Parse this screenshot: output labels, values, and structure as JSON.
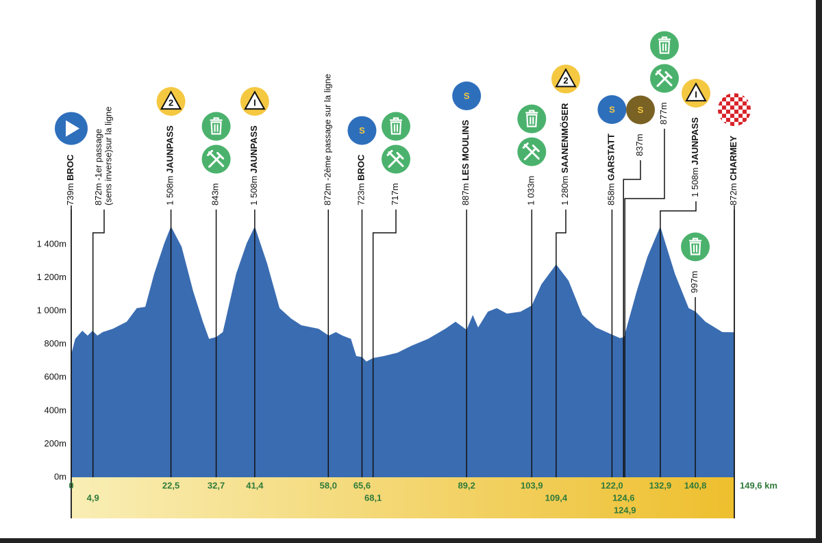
{
  "chart_data": {
    "type": "area",
    "color": "#3a6cb1",
    "x": [
      0,
      0.9,
      2.5,
      3.7,
      4.8,
      5.9,
      7.1,
      9.4,
      12.5,
      14.8,
      16.7,
      18.7,
      21.0,
      22.5,
      24.9,
      27.5,
      29.7,
      31.1,
      32.7,
      34.2,
      37.2,
      39.6,
      41.4,
      44.2,
      47.0,
      49.6,
      51.9,
      55.8,
      58.1,
      59.7,
      61.2,
      63.1,
      64.3,
      65.6,
      66.6,
      68.1,
      70.5,
      73.6,
      76.7,
      80.5,
      84.4,
      86.7,
      89.2,
      90.6,
      91.8,
      94.0,
      96.0,
      98.3,
      101.4,
      103.9,
      106.1,
      109.4,
      112.2,
      115.3,
      118.4,
      122.0,
      123.8,
      124.7,
      127.6,
      130.0,
      132.9,
      136.2,
      139.3,
      140.8,
      143.1,
      146.9,
      149.6
    ],
    "values": [
      739,
      832,
      881,
      852,
      881,
      852,
      873,
      893,
      935,
      1017,
      1025,
      1223,
      1408,
      1508,
      1387,
      1120,
      935,
      832,
      843,
      873,
      1223,
      1408,
      1508,
      1285,
      1017,
      955,
      914,
      893,
      852,
      873,
      852,
      832,
      729,
      723,
      696,
      717,
      729,
      749,
      790,
      832,
      893,
      935,
      887,
      976,
      901,
      996,
      1017,
      984,
      996,
      1033,
      1161,
      1280,
      1182,
      976,
      901,
      858,
      837,
      843,
      1120,
      1326,
      1508,
      1223,
      1017,
      997,
      935,
      873,
      872
    ],
    "xlim": [
      0,
      149.6
    ],
    "ylim": [
      0,
      1400
    ],
    "yticks": [
      {
        "value": 0,
        "label": "0m"
      },
      {
        "value": 200,
        "label": "200m"
      },
      {
        "value": 400,
        "label": "400m"
      },
      {
        "value": 600,
        "label": "600m"
      },
      {
        "value": 800,
        "label": "800m"
      },
      {
        "value": 1000,
        "label": "1 000m"
      },
      {
        "value": 1200,
        "label": "1 200m"
      },
      {
        "value": 1400,
        "label": "1 400m"
      }
    ],
    "points": [
      {
        "x": 0,
        "x_label": "0",
        "altitude": "739m",
        "name": "BROC",
        "icons": [
          {
            "kind": "start"
          }
        ]
      },
      {
        "x": 4.9,
        "x_label": "4,9",
        "altitude": "872m",
        "note": "-1er passage",
        "note2": "(sens inverse)sur la ligne",
        "icons": []
      },
      {
        "x": 22.5,
        "x_label": "22,5",
        "altitude": "1 508m",
        "name": "JAUNPASS",
        "icons": [
          {
            "kind": "climb",
            "text": "2"
          }
        ]
      },
      {
        "x": 32.7,
        "x_label": "32,7",
        "altitude": "843m",
        "icons": [
          {
            "kind": "food"
          },
          {
            "kind": "waste"
          }
        ]
      },
      {
        "x": 41.4,
        "x_label": "41,4",
        "altitude": "1 508m",
        "name": "JAUNPASS",
        "icons": [
          {
            "kind": "climb",
            "text": "I"
          }
        ]
      },
      {
        "x": 58.0,
        "x_label": "58,0",
        "altitude": "872m",
        "note": "-2ème passage sur la ligne",
        "icons": []
      },
      {
        "x": 65.6,
        "x_label": "65,6",
        "altitude": "723m",
        "name": "BROC",
        "icons": [
          {
            "kind": "sprint",
            "text": "S"
          }
        ]
      },
      {
        "x": 68.1,
        "x_label": "68,1",
        "altitude": "717m",
        "icons": [
          {
            "kind": "food"
          },
          {
            "kind": "waste"
          }
        ]
      },
      {
        "x": 89.2,
        "x_label": "89,2",
        "altitude": "887m",
        "name": "LES MOULINS",
        "icons": [
          {
            "kind": "sprint",
            "text": "S"
          }
        ]
      },
      {
        "x": 103.9,
        "x_label": "103,9",
        "altitude": "1 033m",
        "icons": [
          {
            "kind": "food"
          },
          {
            "kind": "waste"
          }
        ]
      },
      {
        "x": 109.4,
        "x_label": "109,4",
        "altitude": "1 280m",
        "name": "SAANENMÖSER",
        "icons": [
          {
            "kind": "climb",
            "text": "2"
          }
        ]
      },
      {
        "x": 122.0,
        "x_label": "122,0",
        "altitude": "858m",
        "name": "GARSTATT",
        "icons": [
          {
            "kind": "sprint",
            "text": "S"
          }
        ]
      },
      {
        "x": 124.6,
        "x_label": "124,6",
        "altitude": "837m",
        "icons": [
          {
            "kind": "sprint-bonus",
            "text": "S"
          }
        ]
      },
      {
        "x": 124.9,
        "x_label": "124,9",
        "altitude": "877m",
        "icons": [
          {
            "kind": "food"
          },
          {
            "kind": "waste"
          }
        ]
      },
      {
        "x": 132.9,
        "x_label": "132,9",
        "altitude": "1 508m",
        "name": "JAUNPASS",
        "icons": [
          {
            "kind": "climb",
            "text": "I"
          }
        ]
      },
      {
        "x": 140.8,
        "x_label": "140,8",
        "altitude": "997m",
        "icons": [
          {
            "kind": "waste"
          }
        ]
      },
      {
        "x": 149.6,
        "x_label": "149,6 km",
        "altitude": "872m",
        "name": "CHARMEY",
        "icons": [
          {
            "kind": "finish"
          }
        ]
      }
    ]
  }
}
